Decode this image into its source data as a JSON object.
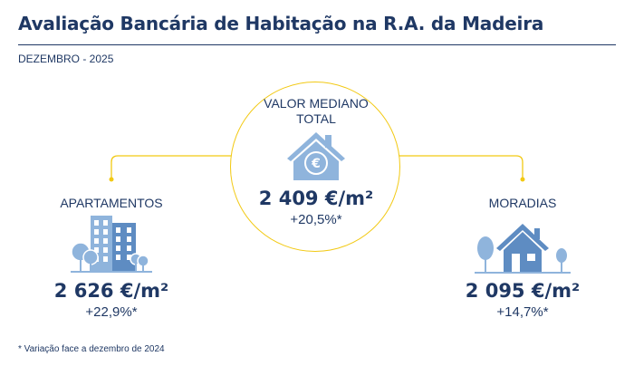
{
  "header": {
    "title": "Avaliação Bancária de Habitação na R.A. da Madeira",
    "subtitle": "DEZEMBRO - 2025"
  },
  "center": {
    "label_line1": "VALOR MEDIANO",
    "label_line2": "TOTAL",
    "value": "2 409 €/m²",
    "variation": "+20,5%*",
    "icon": "house-euro-icon"
  },
  "left": {
    "label": "APARTAMENTOS",
    "value": "2 626 €/m²",
    "variation": "+22,9%*",
    "icon": "apartment-buildings-icon"
  },
  "right": {
    "label": "MORADIAS",
    "value": "2 095 €/m²",
    "variation": "+14,7%*",
    "icon": "house-trees-icon"
  },
  "footnote": "* Variação face a dezembro de 2024",
  "colors": {
    "navy": "#1f3864",
    "accent_yellow": "#f2c913",
    "icon_blue": "#8fb4dc",
    "icon_dark_blue": "#5e8cc2"
  }
}
